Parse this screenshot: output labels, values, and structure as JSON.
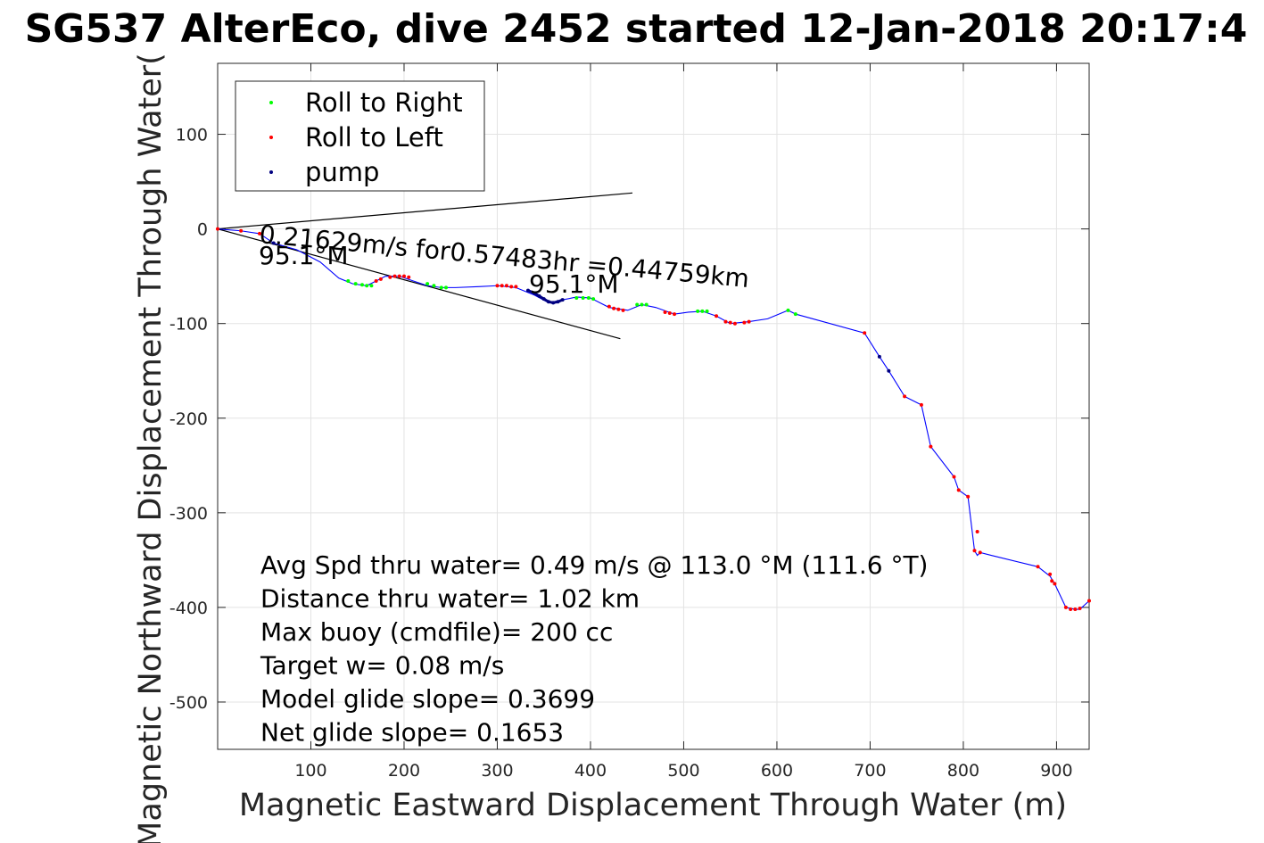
{
  "chart_data": {
    "type": "line",
    "title": "SG537 AlterEco, dive 2452 started 12-Jan-2018 20:17:4",
    "xlabel": "Magnetic Eastward Displacement Through Water (m)",
    "ylabel": "Magnetic Northward Displacement Through Water(",
    "xlim": [
      0,
      935
    ],
    "ylim": [
      -550,
      175
    ],
    "xticks": [
      100,
      200,
      300,
      400,
      500,
      600,
      700,
      800,
      900
    ],
    "yticks": [
      100,
      0,
      -100,
      -200,
      -300,
      -400,
      -500
    ],
    "grid": true,
    "legend": {
      "placement": "top-left",
      "entries": [
        {
          "label": "Roll to Right",
          "color": "#00ff00"
        },
        {
          "label": "Roll to Left",
          "color": "#ff0000"
        },
        {
          "label": "pump",
          "color": "#000080"
        }
      ]
    },
    "track": {
      "name": "track",
      "color": "#0000ff",
      "x": [
        0,
        25,
        45,
        60,
        85,
        110,
        130,
        145,
        160,
        170,
        180,
        195,
        210,
        225,
        240,
        255,
        280,
        300,
        320,
        340,
        355,
        370,
        385,
        400,
        420,
        440,
        455,
        470,
        490,
        505,
        520,
        535,
        550,
        570,
        590,
        612,
        620,
        694,
        710,
        720,
        737,
        755,
        765,
        790,
        795,
        805,
        812,
        815,
        818,
        830,
        880,
        893,
        898,
        910,
        920,
        925,
        935
      ],
      "y": [
        0,
        -2,
        -5,
        -15,
        -22,
        -35,
        -52,
        -58,
        -60,
        -55,
        -50,
        -50,
        -55,
        -60,
        -62,
        -62,
        -61,
        -60,
        -62,
        -70,
        -78,
        -75,
        -72,
        -73,
        -83,
        -86,
        -80,
        -83,
        -90,
        -88,
        -87,
        -92,
        -100,
        -98,
        -95,
        -86,
        -90,
        -110,
        -135,
        -150,
        -177,
        -186,
        -230,
        -262,
        -276,
        -283,
        -340,
        -345,
        -342,
        -345,
        -357,
        -367,
        -375,
        -400,
        -402,
        -402,
        -393
      ]
    },
    "roll_right": {
      "x": [
        140,
        148,
        155,
        160,
        165,
        225,
        232,
        240,
        245,
        385,
        392,
        398,
        403,
        450,
        455,
        460,
        515,
        520,
        525,
        612,
        620
      ],
      "y": [
        -55,
        -58,
        -59,
        -60,
        -60,
        -58,
        -60,
        -62,
        -62,
        -73,
        -73,
        -73,
        -74,
        -80,
        -80,
        -80,
        -87,
        -87,
        -87,
        -86,
        -90
      ]
    },
    "roll_left": {
      "x": [
        0,
        25,
        45,
        170,
        175,
        185,
        190,
        195,
        200,
        205,
        300,
        305,
        310,
        315,
        320,
        420,
        425,
        430,
        435,
        480,
        485,
        490,
        535,
        545,
        550,
        555,
        565,
        570,
        694,
        737,
        755,
        765,
        790,
        795,
        805,
        812,
        815,
        818,
        880,
        893,
        895,
        898,
        910,
        915,
        920,
        925,
        935
      ],
      "y": [
        0,
        -2,
        -5,
        -55,
        -53,
        -51,
        -50,
        -50,
        -50,
        -51,
        -60,
        -60,
        -60,
        -61,
        -61,
        -82,
        -84,
        -85,
        -86,
        -88,
        -89,
        -90,
        -92,
        -98,
        -99,
        -100,
        -99,
        -98,
        -110,
        -177,
        -186,
        -230,
        -262,
        -276,
        -283,
        -340,
        -320,
        -342,
        -357,
        -365,
        -372,
        -375,
        -400,
        -402,
        -402,
        -401,
        -393
      ]
    },
    "pump": {
      "x": [
        60,
        333,
        340,
        345,
        350,
        355,
        360,
        365,
        370,
        710,
        720
      ],
      "y": [
        -15,
        -65,
        -68,
        -71,
        -74,
        -77,
        -78,
        -77,
        -75,
        -135,
        -150
      ]
    },
    "current_line": {
      "x": [
        0,
        445
      ],
      "y": [
        0,
        38
      ]
    },
    "heading_line": {
      "x": [
        0,
        432
      ],
      "y": [
        0,
        -116
      ]
    },
    "current_label": "0.21629m/s for0.57483hr =0.44759km",
    "heading_labels": [
      "95.1°M",
      "95.1°M"
    ],
    "stats": [
      "Avg Spd thru water=  0.49 m/s @ 113.0 °M (111.6 °T)",
      "Distance thru water=  1.02 km",
      "Max buoy (cmdfile)= 200 cc",
      "Target w= 0.08 m/s",
      "Model glide slope= 0.3699",
      "Net glide slope= 0.1653"
    ]
  }
}
